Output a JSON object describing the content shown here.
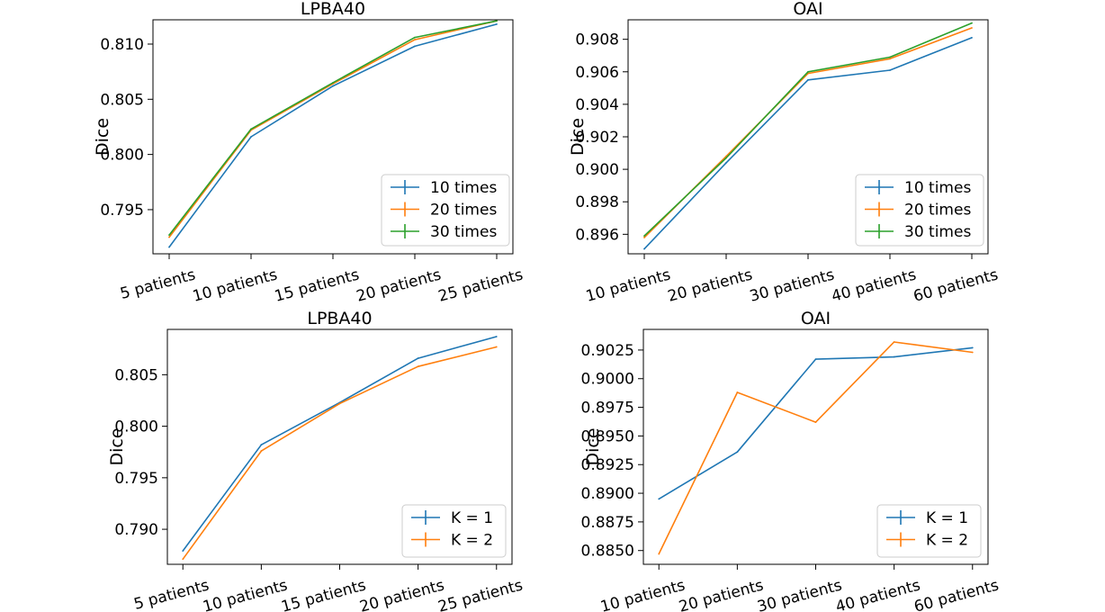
{
  "figure": {
    "chart_data": [
      {
        "type": "line",
        "title": "LPBA40",
        "ylabel": "Dice",
        "xlabel": "",
        "categories": [
          "5 patients",
          "10 patients",
          "15 patients",
          "20 patients",
          "25 patients"
        ],
        "ylim": [
          0.791,
          0.8122
        ],
        "yticks": [
          0.795,
          0.8,
          0.805,
          0.81
        ],
        "ytick_labels": [
          "0.795",
          "0.800",
          "0.805",
          "0.810"
        ],
        "legend_position": "lower-right",
        "series": [
          {
            "name": "10 times",
            "color": "#1f77b4",
            "values": [
              0.7916,
              0.8016,
              0.8062,
              0.8098,
              0.8118
            ]
          },
          {
            "name": "20 times",
            "color": "#ff7f0e",
            "values": [
              0.7925,
              0.8022,
              0.8064,
              0.8104,
              0.8121
            ]
          },
          {
            "name": "30 times",
            "color": "#2ca02c",
            "values": [
              0.7927,
              0.8023,
              0.8065,
              0.8106,
              0.8121
            ]
          }
        ]
      },
      {
        "type": "line",
        "title": "OAI",
        "ylabel": "Dice",
        "xlabel": "",
        "categories": [
          "10 patients",
          "20 patients",
          "30 patients",
          "40 patients",
          "60 patients"
        ],
        "ylim": [
          0.8948,
          0.9092
        ],
        "yticks": [
          0.896,
          0.898,
          0.9,
          0.902,
          0.904,
          0.906,
          0.908
        ],
        "ytick_labels": [
          "0.896",
          "0.898",
          "0.900",
          "0.902",
          "0.904",
          "0.906",
          "0.908"
        ],
        "legend_position": "lower-right",
        "series": [
          {
            "name": "10 times",
            "color": "#1f77b4",
            "values": [
              0.8951,
              0.9004,
              0.9055,
              0.9061,
              0.9081
            ]
          },
          {
            "name": "20 times",
            "color": "#ff7f0e",
            "values": [
              0.8958,
              0.9008,
              0.9059,
              0.9068,
              0.9087
            ]
          },
          {
            "name": "30 times",
            "color": "#2ca02c",
            "values": [
              0.8959,
              0.9007,
              0.906,
              0.9069,
              0.909
            ]
          }
        ]
      },
      {
        "type": "line",
        "title": "LPBA40",
        "ylabel": "Dice",
        "xlabel": "",
        "categories": [
          "5 patients",
          "10 patients",
          "15 patients",
          "20 patients",
          "25 patients"
        ],
        "ylim": [
          0.7866,
          0.8094
        ],
        "yticks": [
          0.79,
          0.795,
          0.8,
          0.805
        ],
        "ytick_labels": [
          "0.790",
          "0.795",
          "0.800",
          "0.805"
        ],
        "legend_position": "lower-right",
        "series": [
          {
            "name": "K = 1",
            "color": "#1f77b4",
            "values": [
              0.7879,
              0.7982,
              0.8023,
              0.8066,
              0.8087
            ]
          },
          {
            "name": "K = 2",
            "color": "#ff7f0e",
            "values": [
              0.7871,
              0.7976,
              0.8022,
              0.8058,
              0.8077
            ]
          }
        ]
      },
      {
        "type": "line",
        "title": "OAI",
        "ylabel": "Dice",
        "xlabel": "",
        "categories": [
          "10 patients",
          "20 patients",
          "30 patients",
          "40 patients",
          "60 patients"
        ],
        "ylim": [
          0.8838,
          0.9043
        ],
        "yticks": [
          0.885,
          0.8875,
          0.89,
          0.8925,
          0.895,
          0.8975,
          0.9,
          0.9025
        ],
        "ytick_labels": [
          "0.8850",
          "0.8875",
          "0.8900",
          "0.8925",
          "0.8950",
          "0.8975",
          "0.9000",
          "0.9025"
        ],
        "legend_position": "lower-right",
        "series": [
          {
            "name": "K = 1",
            "color": "#1f77b4",
            "values": [
              0.8895,
              0.8936,
              0.9017,
              0.9019,
              0.9027
            ]
          },
          {
            "name": "K = 2",
            "color": "#ff7f0e",
            "values": [
              0.8847,
              0.8988,
              0.8962,
              0.9032,
              0.9023
            ]
          }
        ]
      }
    ]
  }
}
